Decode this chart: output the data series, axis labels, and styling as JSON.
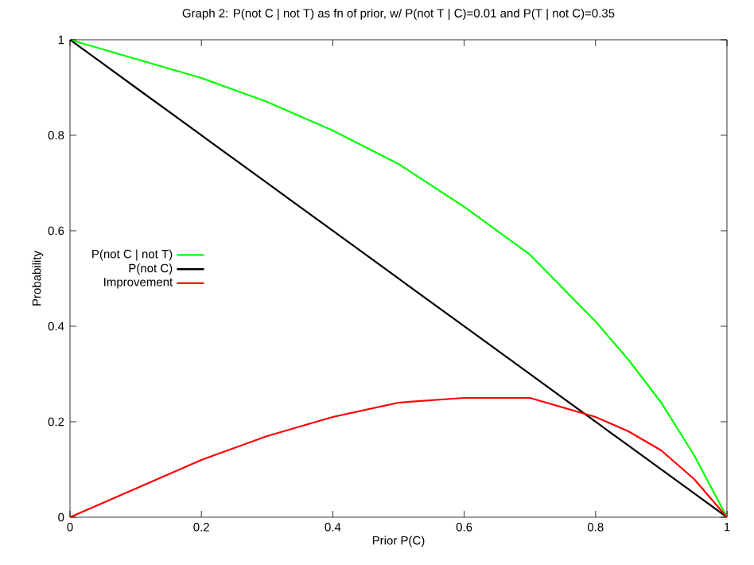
{
  "chart_data": {
    "type": "line",
    "title": "Graph 2: P(not C | not T) as fn of prior, w/ P(not T | C)=0.01 and P(T | not C)=0.35",
    "xlabel": "Prior P(C)",
    "ylabel": "Probability",
    "x": [
      0,
      0.05,
      0.1,
      0.2,
      0.3,
      0.4,
      0.5,
      0.6,
      0.7,
      0.8,
      0.85,
      0.9,
      0.95,
      1
    ],
    "series": [
      {
        "name": "P(not C | not T)",
        "color": "#00ff00",
        "values": [
          1,
          0.98,
          0.96,
          0.92,
          0.87,
          0.81,
          0.74,
          0.65,
          0.55,
          0.41,
          0.33,
          0.24,
          0.13,
          0
        ]
      },
      {
        "name": "P(not C)",
        "color": "#000000",
        "values": [
          1,
          0.95,
          0.9,
          0.8,
          0.7,
          0.6,
          0.5,
          0.4,
          0.3,
          0.2,
          0.15,
          0.1,
          0.05,
          0
        ]
      },
      {
        "name": "Improvement",
        "color": "#ff0000",
        "values": [
          0,
          0.03,
          0.06,
          0.12,
          0.17,
          0.21,
          0.24,
          0.25,
          0.25,
          0.21,
          0.18,
          0.14,
          0.08,
          0
        ]
      }
    ],
    "xlim": [
      0,
      1
    ],
    "ylim": [
      0,
      1
    ],
    "xticks": [
      0,
      0.2,
      0.4,
      0.6,
      0.8,
      1
    ],
    "yticks": [
      0,
      0.2,
      0.4,
      0.6,
      0.8,
      1
    ],
    "grid": false,
    "legend": "left",
    "marker": "none",
    "line_style": "solid"
  }
}
